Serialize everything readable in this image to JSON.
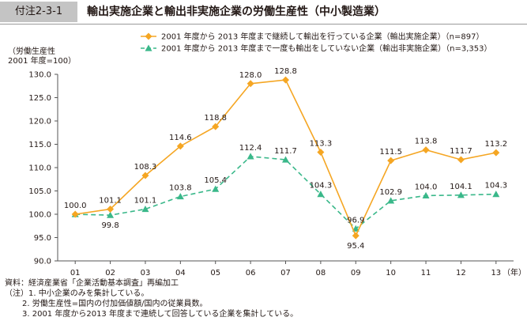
{
  "figure": {
    "number": "付注2-3-1",
    "title": "輸出実施企業と輸出非実施企業の労働生産性（中小製造業）"
  },
  "chart_data": {
    "type": "line",
    "y_axis_title_line1": "（労働生産性",
    "y_axis_title_line2": "2001 年度=100）",
    "x_unit": "（年）",
    "categories": [
      "01",
      "02",
      "03",
      "04",
      "05",
      "06",
      "07",
      "08",
      "09",
      "10",
      "11",
      "12",
      "13"
    ],
    "ylim": [
      90,
      130
    ],
    "yticks": [
      "90.0",
      "95.0",
      "100.0",
      "105.0",
      "110.0",
      "115.0",
      "120.0",
      "125.0",
      "130.0"
    ],
    "grid": false,
    "legend_position": "top",
    "series": [
      {
        "name": "2001 年度から 2013 年度まで継続して輸出を行っている企業（輸出実施企業）（n=897）",
        "color": "#f5a623",
        "marker": "diamond",
        "line_style": "solid",
        "values": [
          100.0,
          101.1,
          108.3,
          114.6,
          118.8,
          128.0,
          128.8,
          113.3,
          95.4,
          111.5,
          113.8,
          111.7,
          113.2
        ],
        "labels": [
          "100.0",
          "101.1",
          "108.3",
          "114.6",
          "118.8",
          "128.0",
          "128.8",
          "113.3",
          "95.4",
          "111.5",
          "113.8",
          "111.7",
          "113.2"
        ]
      },
      {
        "name": "2001 年度から 2013 年度まで一度も輸出をしていない企業（輸出非実施企業）（n=3,353）",
        "color": "#3ab88a",
        "marker": "triangle",
        "line_style": "dashed",
        "values": [
          100.0,
          99.8,
          101.1,
          103.8,
          105.4,
          112.4,
          111.7,
          104.3,
          96.9,
          102.9,
          104.0,
          104.1,
          104.3
        ],
        "labels": [
          "",
          "99.8",
          "101.1",
          "103.8",
          "105.4",
          "112.4",
          "111.7",
          "104.3",
          "96.9",
          "102.9",
          "104.0",
          "104.1",
          "104.3"
        ]
      }
    ]
  },
  "notes": {
    "source": "資料：経済産業省「企業活動基本調査」再編加工",
    "note1": "（注）1. 中小企業のみを集計している。",
    "note2": "2. 労働生産性=国内の付加価値額/国内の従業員数。",
    "note3": "3. 2001 年度から2013 年度まで連続して回答している企業を集計している。"
  }
}
